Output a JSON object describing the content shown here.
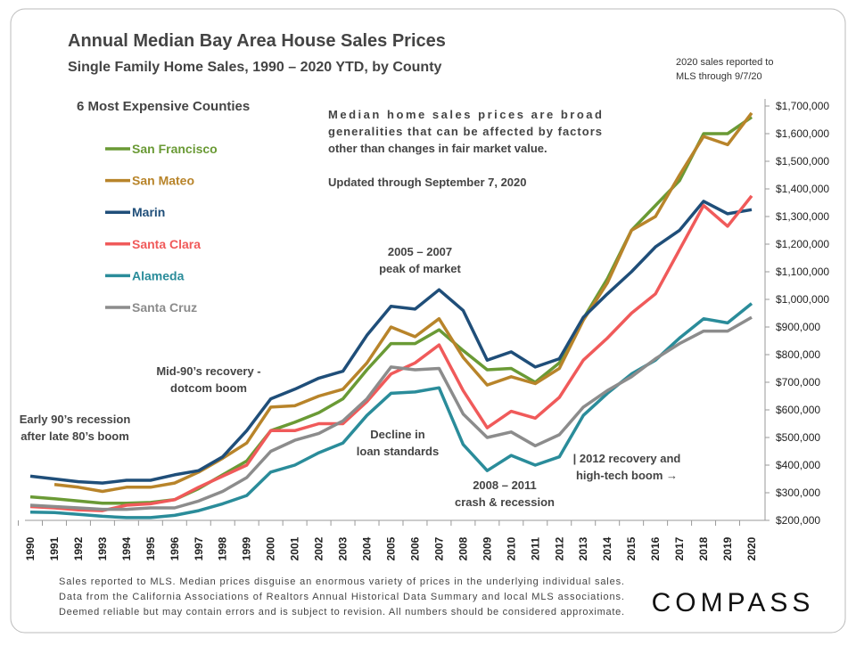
{
  "chart_data": {
    "type": "line",
    "title": "Annual Median Bay Area House Sales Prices",
    "subtitle": "Single Family Home Sales, 1990 – 2020 YTD, by County",
    "note_lines": [
      "2020 sales reported to",
      "MLS through 9/7/20"
    ],
    "legend_title": "6 Most Expensive Counties",
    "description_lines": [
      "Median home sales prices are broad",
      "generalities that can be affected by factors",
      "other than changes in fair market value.",
      "Updated through September 7, 2020"
    ],
    "annotations": [
      {
        "lines": [
          "2005 – 2007",
          "peak of market"
        ]
      },
      {
        "lines": [
          "Mid-90’s recovery -",
          "dotcom boom"
        ]
      },
      {
        "lines": [
          "Early 90’s recession",
          "after late 80’s boom"
        ]
      },
      {
        "lines": [
          "Decline in",
          "loan standards"
        ]
      },
      {
        "lines": [
          "2008 – 2011",
          "crash & recession"
        ]
      },
      {
        "lines": [
          "| 2012 recovery and",
          "high-tech boom →"
        ]
      }
    ],
    "categories": [
      "1990",
      "1991",
      "1992",
      "1993",
      "1994",
      "1995",
      "1996",
      "1997",
      "1998",
      "1999",
      "2000",
      "2001",
      "2002",
      "2003",
      "2004",
      "2005",
      "2006",
      "2007",
      "2008",
      "2009",
      "2010",
      "2011",
      "2012",
      "2013",
      "2014",
      "2015",
      "2016",
      "2017",
      "2018",
      "2019",
      "2020"
    ],
    "series": [
      {
        "name": "San Francisco",
        "color": "#6a9a35",
        "values": [
          285000,
          278000,
          270000,
          262000,
          262000,
          265000,
          275000,
          315000,
          365000,
          415000,
          525000,
          555000,
          590000,
          640000,
          745000,
          840000,
          840000,
          890000,
          815000,
          745000,
          750000,
          700000,
          770000,
          930000,
          1075000,
          1250000,
          1340000,
          1430000,
          1600000,
          1600000,
          1660000
        ]
      },
      {
        "name": "San Mateo",
        "color": "#b8842a",
        "values": [
          null,
          330000,
          320000,
          305000,
          320000,
          320000,
          335000,
          375000,
          425000,
          480000,
          610000,
          615000,
          650000,
          675000,
          770000,
          900000,
          865000,
          930000,
          790000,
          690000,
          720000,
          695000,
          750000,
          925000,
          1060000,
          1250000,
          1300000,
          1450000,
          1590000,
          1560000,
          1675000
        ]
      },
      {
        "name": "Marin",
        "color": "#1f4e79",
        "values": [
          360000,
          350000,
          340000,
          335000,
          345000,
          345000,
          365000,
          380000,
          430000,
          525000,
          640000,
          675000,
          715000,
          740000,
          870000,
          975000,
          965000,
          1035000,
          960000,
          780000,
          810000,
          755000,
          785000,
          935000,
          1020000,
          1100000,
          1190000,
          1250000,
          1355000,
          1310000,
          1325000
        ]
      },
      {
        "name": "Santa Clara",
        "color": "#f05a5a",
        "values": [
          250000,
          245000,
          238000,
          235000,
          255000,
          260000,
          275000,
          320000,
          360000,
          400000,
          525000,
          525000,
          550000,
          550000,
          630000,
          730000,
          770000,
          835000,
          670000,
          535000,
          595000,
          570000,
          645000,
          780000,
          860000,
          950000,
          1020000,
          1180000,
          1340000,
          1265000,
          1375000
        ]
      },
      {
        "name": "Alameda",
        "color": "#2a8c9a",
        "values": [
          230000,
          228000,
          222000,
          215000,
          210000,
          210000,
          218000,
          235000,
          260000,
          290000,
          375000,
          400000,
          445000,
          480000,
          580000,
          660000,
          665000,
          680000,
          475000,
          380000,
          435000,
          400000,
          430000,
          580000,
          660000,
          730000,
          780000,
          860000,
          930000,
          915000,
          985000
        ]
      },
      {
        "name": "Santa Cruz",
        "color": "#8c8c8c",
        "values": [
          255000,
          250000,
          245000,
          240000,
          240000,
          245000,
          245000,
          270000,
          305000,
          355000,
          450000,
          490000,
          515000,
          560000,
          640000,
          755000,
          745000,
          750000,
          585000,
          500000,
          520000,
          470000,
          510000,
          610000,
          670000,
          720000,
          785000,
          840000,
          885000,
          885000,
          935000
        ]
      }
    ],
    "ylim": [
      200000,
      1700000
    ],
    "yticks": [
      {
        "value": 200000,
        "label": "$200,000"
      },
      {
        "value": 300000,
        "label": "$300,000"
      },
      {
        "value": 400000,
        "label": "$400,000"
      },
      {
        "value": 500000,
        "label": "$500,000"
      },
      {
        "value": 600000,
        "label": "$600,000"
      },
      {
        "value": 700000,
        "label": "$700,000"
      },
      {
        "value": 800000,
        "label": "$800,000"
      },
      {
        "value": 900000,
        "label": "$900,000"
      },
      {
        "value": 1000000,
        "label": "$1,000,000"
      },
      {
        "value": 1100000,
        "label": "$1,100,000"
      },
      {
        "value": 1200000,
        "label": "$1,200,000"
      },
      {
        "value": 1300000,
        "label": "$1,300,000"
      },
      {
        "value": 1400000,
        "label": "$1,400,000"
      },
      {
        "value": 1500000,
        "label": "$1,500,000"
      },
      {
        "value": 1600000,
        "label": "$1,600,000"
      },
      {
        "value": 1700000,
        "label": "$1,700,000"
      }
    ],
    "footer_lines": [
      "Sales reported to MLS. Median prices disguise an enormous variety of prices in the underlying individual sales.",
      "Data from the California Associations of Realtors Annual Historical Data Summary and local MLS associations.",
      "Deemed reliable but may contain errors and is subject to revision. All numbers should be considered approximate."
    ],
    "logo": "COMPASS"
  }
}
